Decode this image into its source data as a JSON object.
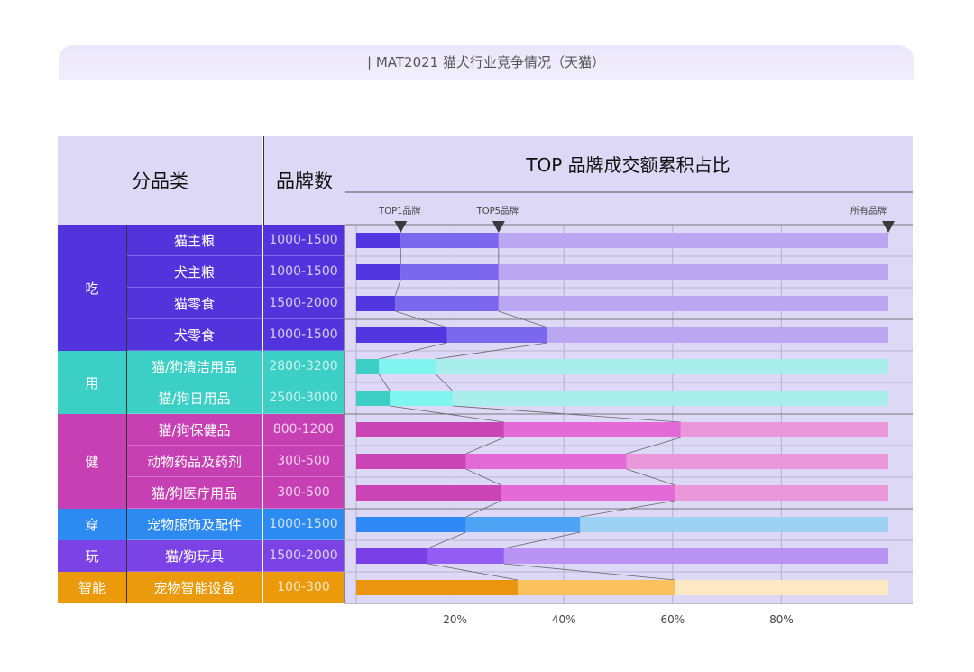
{
  "title": "| MAT2021 猫犬行业竞争情况（天猫）",
  "headers": {
    "category": "分品类",
    "brand_count": "品牌数"
  },
  "chart_data": {
    "type": "bar",
    "title": "TOP 品牌成交额累积占比",
    "markers": [
      "TOP1品牌",
      "TOP5品牌",
      "所有品牌"
    ],
    "x_ticks": [
      "20%",
      "40%",
      "60%",
      "80%"
    ],
    "xlim": [
      0,
      100
    ],
    "grid": true,
    "groups": [
      {
        "name": "吃",
        "colors": [
          "#5236e0",
          "#7b68ee",
          "#bba6f2"
        ],
        "cell": "#5134dc"
      },
      {
        "name": "用",
        "colors": [
          "#3ccdc5",
          "#80f5ef",
          "#a8eeea"
        ],
        "cell": "#3ccfc6"
      },
      {
        "name": "健",
        "colors": [
          "#c944b4",
          "#e46ad8",
          "#eb98da"
        ],
        "cell": "#c640b4"
      },
      {
        "name": "穿",
        "colors": [
          "#2f8af5",
          "#4ea3f5",
          "#9dd2f5"
        ],
        "cell": "#2c8af0"
      },
      {
        "name": "玩",
        "colors": [
          "#7a40e8",
          "#935cf2",
          "#b894f5"
        ],
        "cell": "#7b43e6"
      },
      {
        "name": "智能",
        "colors": [
          "#eb9410",
          "#fbc15c",
          "#fde8c4"
        ],
        "cell": "#eb9a0c"
      }
    ],
    "rows": [
      {
        "group": 0,
        "category": "猫主粮",
        "brands": "1000-1500",
        "top1": 10,
        "top5": 28,
        "all": 100
      },
      {
        "group": 0,
        "category": "犬主粮",
        "brands": "1000-1500",
        "top1": 10,
        "top5": 28,
        "all": 100
      },
      {
        "group": 0,
        "category": "猫零食",
        "brands": "1500-2000",
        "top1": 9,
        "top5": 28,
        "all": 100
      },
      {
        "group": 0,
        "category": "犬零食",
        "brands": "1000-1500",
        "top1": 18.5,
        "top5": 37,
        "all": 100
      },
      {
        "group": 1,
        "category": "猫/狗清洁用品",
        "brands": "2800-3200",
        "top1": 6,
        "top5": 16.5,
        "all": 100
      },
      {
        "group": 1,
        "category": "猫/狗日用品",
        "brands": "2500-3000",
        "top1": 8,
        "top5": 19.5,
        "all": 100
      },
      {
        "group": 2,
        "category": "猫/狗保健品",
        "brands": "800-1200",
        "top1": 29,
        "top5": 61.5,
        "all": 100
      },
      {
        "group": 2,
        "category": "动物药品及药剂",
        "brands": "300-500",
        "top1": 22,
        "top5": 51.5,
        "all": 100
      },
      {
        "group": 2,
        "category": "猫/狗医疗用品",
        "brands": "300-500",
        "top1": 28.5,
        "top5": 60.5,
        "all": 100
      },
      {
        "group": 3,
        "category": "宠物服饰及配件",
        "brands": "1000-1500",
        "top1": 22,
        "top5": 43,
        "all": 100
      },
      {
        "group": 4,
        "category": "猫/狗玩具",
        "brands": "1500-2000",
        "top1": 15,
        "top5": 29,
        "all": 100
      },
      {
        "group": 5,
        "category": "宠物智能设备",
        "brands": "100-300",
        "top1": 31.5,
        "top5": 60.5,
        "all": 100
      }
    ]
  }
}
